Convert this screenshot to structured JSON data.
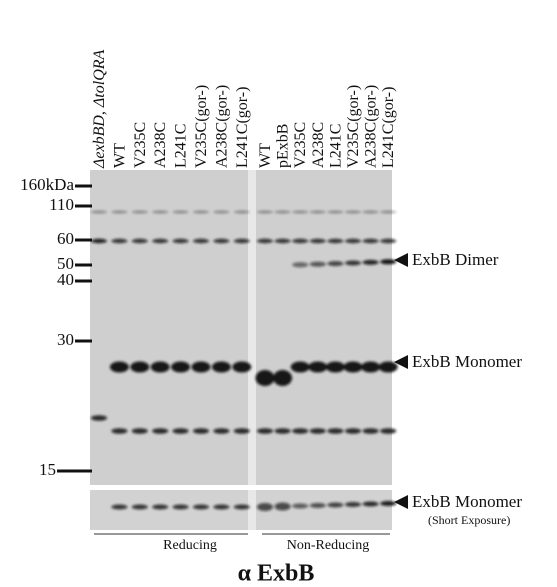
{
  "lanes": {
    "reducing": [
      "ΔexbBD, ΔtolQRA",
      "WT",
      "V235C",
      "A238C",
      "L241C",
      "V235C(gor-)",
      "A238C(gor-)",
      "L241C(gor-)"
    ],
    "non_reducing": [
      "WT",
      "pExbB",
      "V235C",
      "A238C",
      "L241C",
      "V235C(gor-)",
      "A238C(gor-)",
      "L241C(gor-)"
    ]
  },
  "markers": [
    "160kDa",
    "110",
    "60",
    "50",
    "40",
    "30",
    "15"
  ],
  "bands": {
    "dimer": "ExbB Dimer",
    "monomer": "ExbB Monomer",
    "monomer_short": "ExbB Monomer",
    "short_exposure": "(Short Exposure)"
  },
  "groups": {
    "reducing": "Reducing",
    "non_reducing": "Non-Reducing"
  },
  "title": "α ExbB"
}
